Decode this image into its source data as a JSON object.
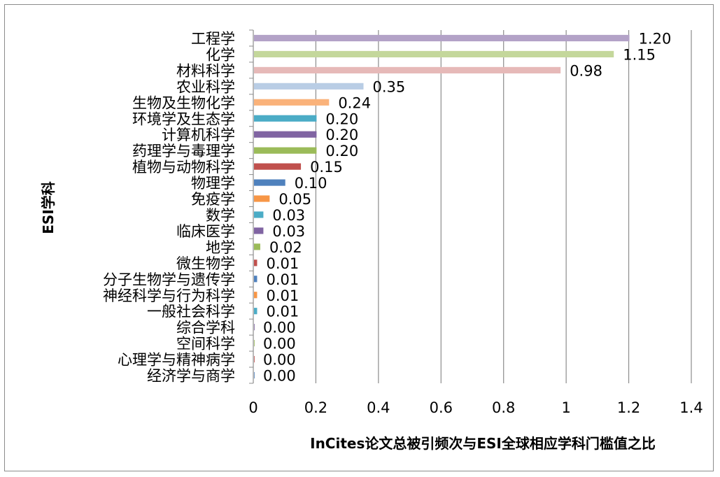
{
  "chart_data": {
    "type": "bar",
    "orientation": "horizontal",
    "xlabel": "InCites论文总被引频次与ESI全球相应学科门槛值之比",
    "ylabel": "ESI学科",
    "xlim": [
      0,
      1.4
    ],
    "xticks": [
      "0",
      "0.2",
      "0.4",
      "0.6",
      "0.8",
      "1",
      "1.2",
      "1.4"
    ],
    "grid": "vertical",
    "legend": "none",
    "categories": [
      "工程学",
      "化学",
      "材料科学",
      "农业科学",
      "生物及生物化学",
      "环境学及生态学",
      "计算机科学",
      "药理学与毒理学",
      "植物与动物科学",
      "物理学",
      "免疫学",
      "数学",
      "临床医学",
      "地学",
      "微生物学",
      "分子生物学与遗传学",
      "神经科学与行为科学",
      "一般社会科学",
      "综合学科",
      "空间科学",
      "心理学与精神病学",
      "经济学与商学"
    ],
    "values": [
      1.2,
      1.15,
      0.98,
      0.35,
      0.24,
      0.2,
      0.2,
      0.2,
      0.15,
      0.1,
      0.05,
      0.03,
      0.03,
      0.02,
      0.01,
      0.01,
      0.01,
      0.01,
      0.0,
      0.0,
      0.0,
      0.0
    ],
    "value_labels": [
      "1.20",
      "1.15",
      "0.98",
      "0.35",
      "0.24",
      "0.20",
      "0.20",
      "0.20",
      "0.15",
      "0.10",
      "0.05",
      "0.03",
      "0.03",
      "0.02",
      "0.01",
      "0.01",
      "0.01",
      "0.01",
      "0.00",
      "0.00",
      "0.00",
      "0.00"
    ],
    "colors": [
      "#b3a2c7",
      "#c4d79b",
      "#e6b9b8",
      "#b9cde5",
      "#fab27a",
      "#4bacc6",
      "#8064a2",
      "#9bbb59",
      "#c0504d",
      "#4f81bd",
      "#f79646",
      "#4bacc6",
      "#8064a2",
      "#9bbb59",
      "#c0504d",
      "#4f81bd",
      "#f79646",
      "#4bacc6",
      "#8064a2",
      "#9bbb59",
      "#c0504d",
      "#4f81bd"
    ],
    "gridline_color": "#8c8c8c"
  }
}
